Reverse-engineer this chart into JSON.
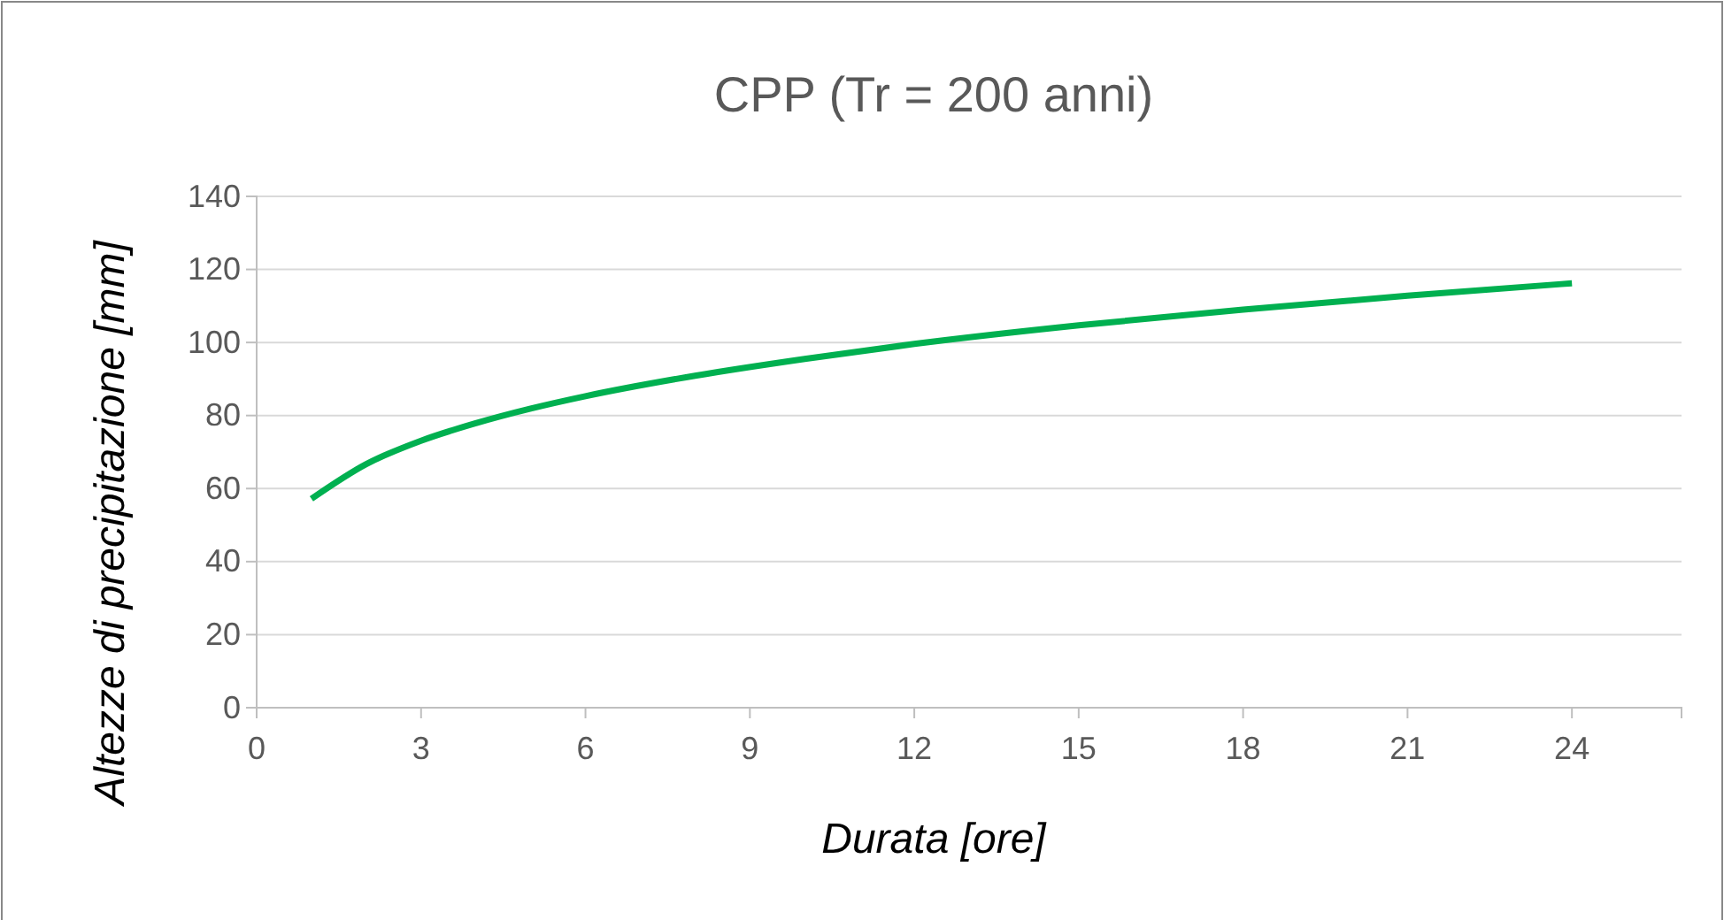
{
  "chart_data": {
    "type": "line",
    "title": "CPP (Tr = 200 anni)",
    "xlabel": "Durata [ore]",
    "ylabel": "Altezze di precipitazione [mm]",
    "x": [
      1,
      2,
      3,
      4,
      5,
      6,
      8,
      10,
      12,
      15,
      18,
      21,
      24
    ],
    "series": [
      {
        "color": "#00b050",
        "values": [
          57.2,
          66.7,
          73.1,
          77.9,
          81.9,
          85.3,
          90.9,
          95.5,
          99.6,
          104.7,
          109,
          112.8,
          116.2
        ]
      }
    ],
    "xlim": [
      0,
      26
    ],
    "xticks": [
      0,
      3,
      6,
      9,
      12,
      15,
      18,
      21,
      24
    ],
    "ylim": [
      0,
      140
    ],
    "yticks": [
      0,
      20,
      40,
      60,
      80,
      100,
      120,
      140
    ],
    "grid": "y",
    "marker": "none",
    "line_style": "solid"
  }
}
